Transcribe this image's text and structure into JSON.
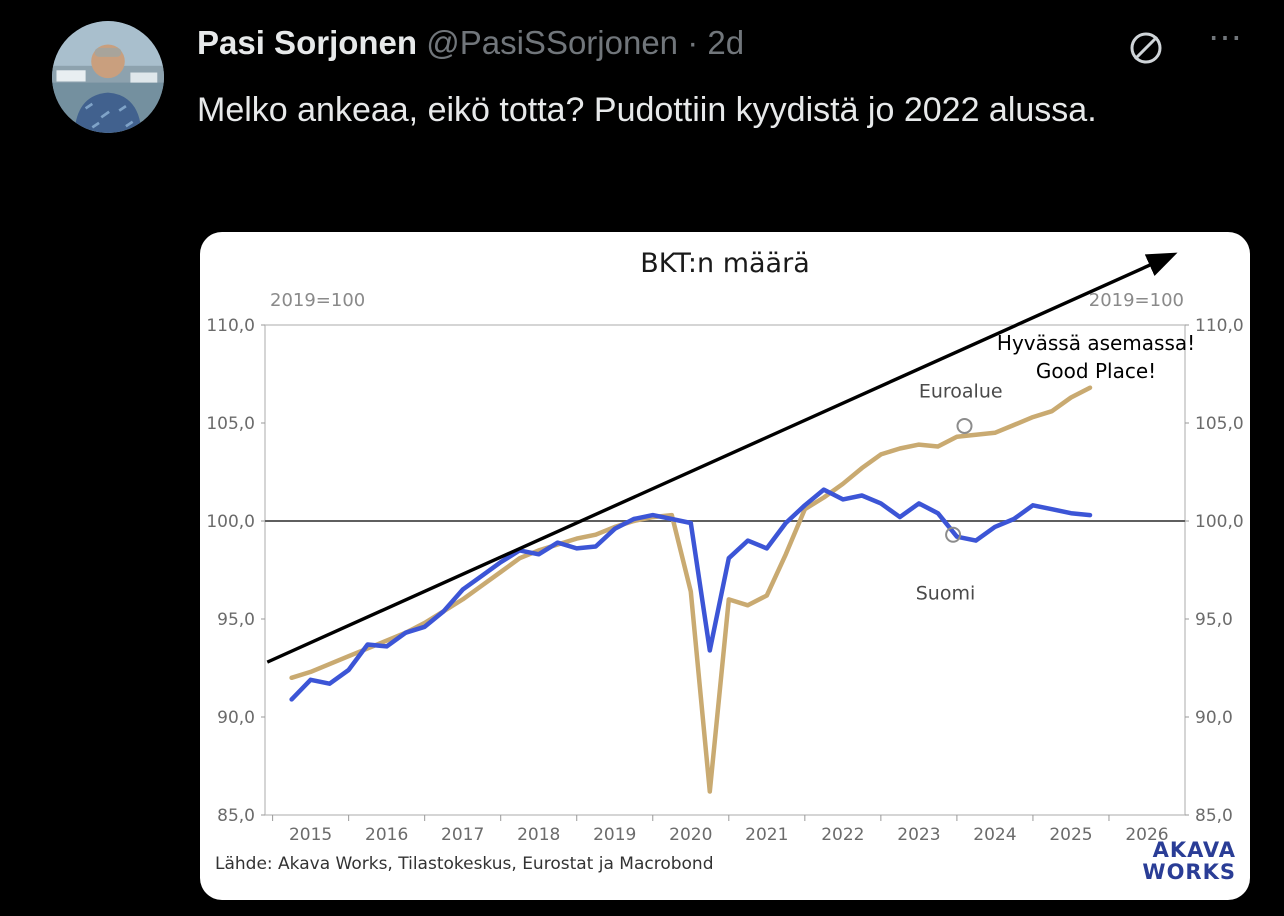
{
  "post": {
    "author": "Pasi Sorjonen",
    "handle": "@PasiSSorjonen",
    "separator": "·",
    "timestamp": "2d",
    "body": "Melko ankeaa, eikö totta? Pudottiin kyydistä jo 2022 alussa."
  },
  "icons": {
    "grok_icon": "slashed-circle",
    "more_icon": "⋯"
  },
  "chart_data": {
    "type": "line",
    "title": "BKT:n määrä",
    "unit_label_left": "2019=100",
    "unit_label_right": "2019=100",
    "xlim": [
      2014.4,
      2026.5
    ],
    "ylim": [
      85,
      110
    ],
    "reference_line": 100,
    "yticks": [
      85,
      90,
      95,
      100,
      105,
      110
    ],
    "ytick_labels": [
      "85,0",
      "90,0",
      "95,0",
      "100,0",
      "105,0",
      "110,0"
    ],
    "xticks": [
      2015,
      2016,
      2017,
      2018,
      2019,
      2020,
      2021,
      2022,
      2023,
      2024,
      2025,
      2026
    ],
    "xminor": [
      2014.5,
      2015.5,
      2016.5,
      2017.5,
      2018.5,
      2019.5,
      2020.5,
      2021.5,
      2022.5,
      2023.5,
      2024.5,
      2025.5
    ],
    "series": [
      {
        "name": "Euroalue",
        "color": "#c9aa71",
        "x_start": 2014.75,
        "x_step": 0.25,
        "values": [
          92.0,
          92.3,
          92.7,
          93.1,
          93.5,
          93.9,
          94.3,
          94.8,
          95.4,
          96.0,
          96.7,
          97.4,
          98.1,
          98.5,
          98.8,
          99.1,
          99.3,
          99.7,
          100.0,
          100.2,
          100.3,
          96.4,
          86.2,
          96.0,
          95.7,
          96.2,
          98.3,
          100.6,
          101.2,
          101.9,
          102.7,
          103.4,
          103.7,
          103.9,
          103.8,
          104.3,
          104.4,
          104.5,
          104.9,
          105.3,
          105.6,
          106.3,
          106.8
        ]
      },
      {
        "name": "Suomi",
        "color": "#3c55d6",
        "x_start": 2014.75,
        "x_step": 0.25,
        "values": [
          90.9,
          91.9,
          91.7,
          92.4,
          93.7,
          93.6,
          94.3,
          94.6,
          95.4,
          96.5,
          97.2,
          97.9,
          98.5,
          98.3,
          98.9,
          98.6,
          98.7,
          99.6,
          100.1,
          100.3,
          100.1,
          99.9,
          93.4,
          98.1,
          99.0,
          98.6,
          99.9,
          100.8,
          101.6,
          101.1,
          101.3,
          100.9,
          100.2,
          100.9,
          100.4,
          99.2,
          99.0,
          99.7,
          100.1,
          100.8,
          100.6,
          100.4,
          100.3
        ]
      }
    ],
    "markers": [
      {
        "x": 2023.6,
        "y": 104.85
      },
      {
        "x": 2023.45,
        "y": 99.3
      }
    ],
    "annotations": [
      {
        "text": "Hyvässä asemassa!",
        "x": 2025.33,
        "y": 108.72,
        "size": 20,
        "color": "#000000"
      },
      {
        "text": "Good Place!",
        "x": 2025.33,
        "y": 107.3,
        "size": 20,
        "color": "#000000"
      },
      {
        "text": "Euroalue",
        "x": 2023.55,
        "y": 106.3,
        "size": 19,
        "color": "#4a4a4a"
      },
      {
        "text": "Suomi",
        "x": 2023.35,
        "y": 96.0,
        "size": 19,
        "color": "#4a4a4a"
      }
    ],
    "arrow": {
      "x1": 2014.43,
      "y1": 92.8,
      "x2": 2026.32,
      "y2": 113.55
    },
    "source": "Lähde: Akava Works, Tilastokeskus, Eurostat ja Macrobond",
    "logo_line1": "AKAVA",
    "logo_line2": "WORKS"
  }
}
